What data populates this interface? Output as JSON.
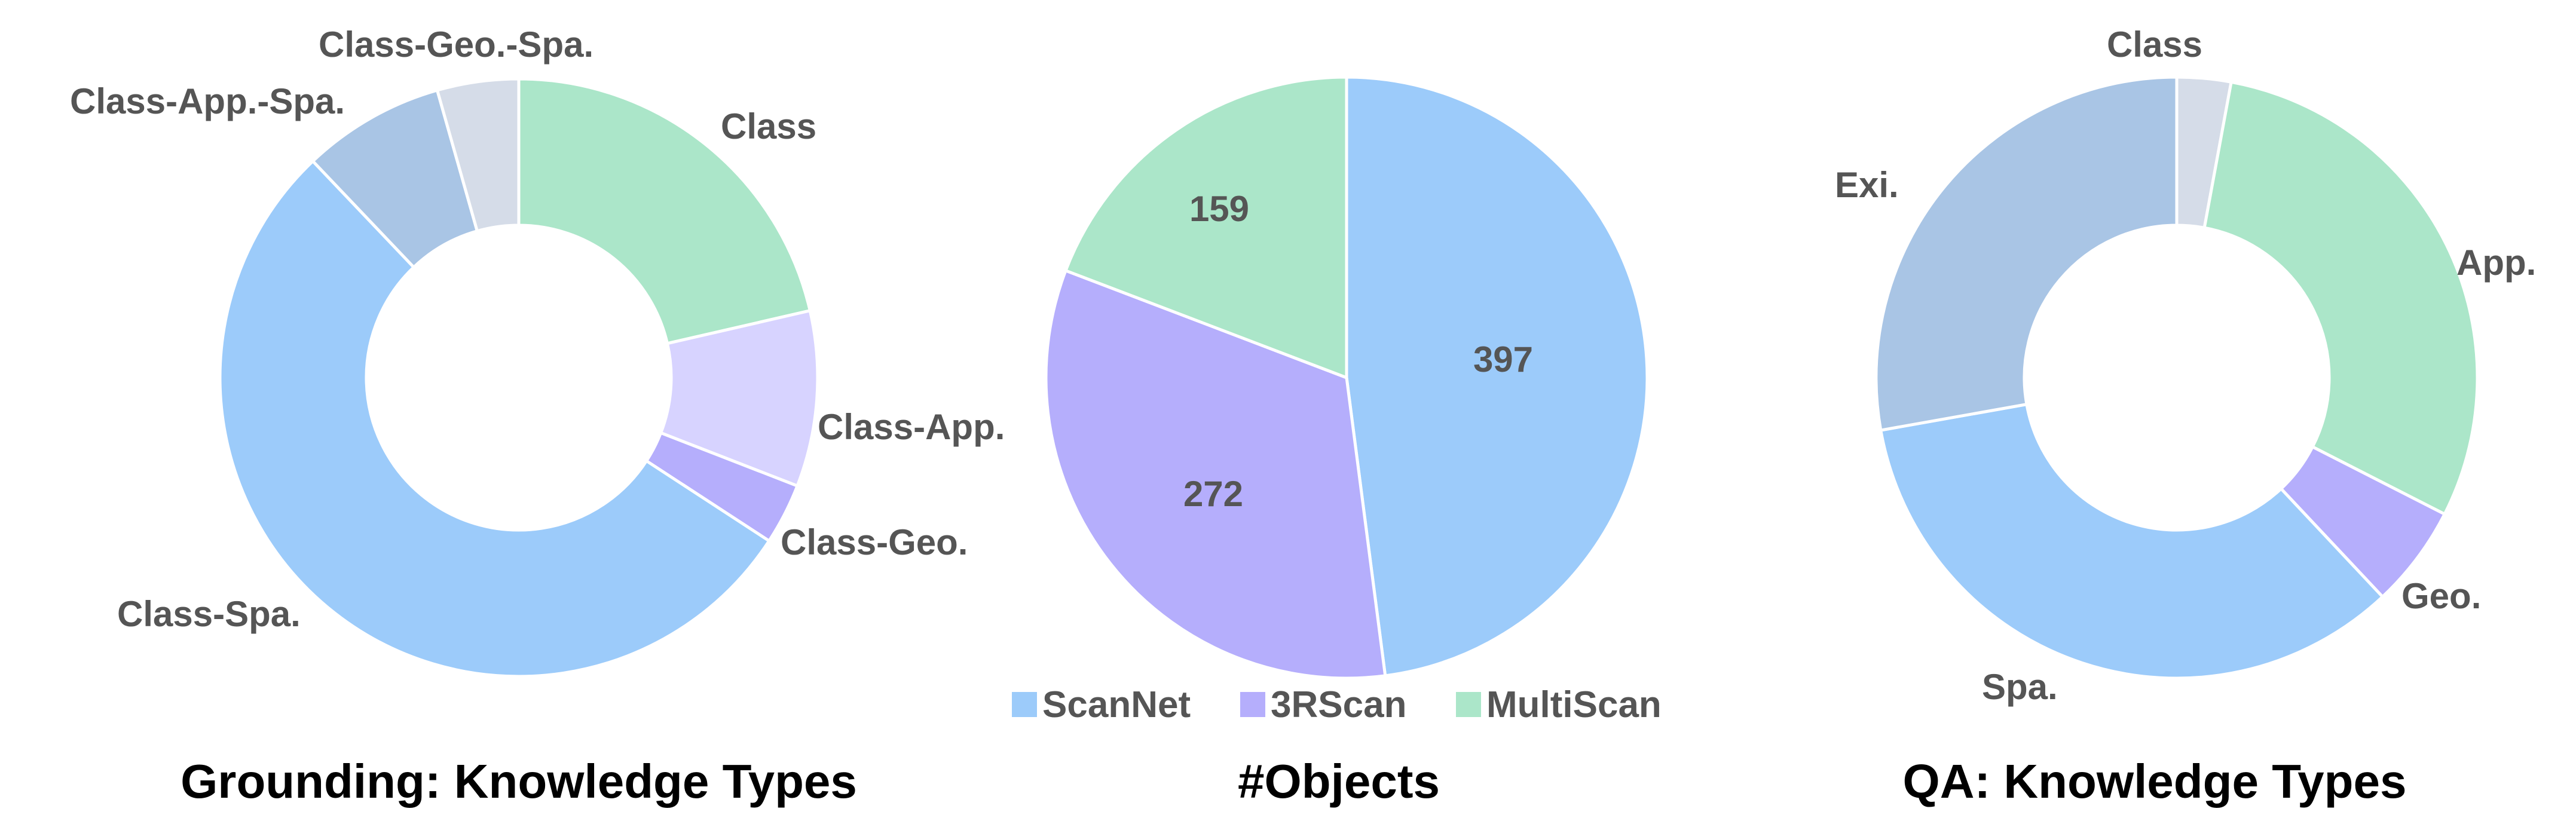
{
  "chart_data": [
    {
      "type": "pie",
      "variant": "donut",
      "title": "Grounding: Knowledge Types",
      "categories": [
        "Class",
        "Class-App.",
        "Class-Geo.",
        "Class-Spa.",
        "Class-App.-Spa.",
        "Class-Geo.-Spa."
      ],
      "values": [
        21.4,
        9.5,
        3.3,
        53.7,
        7.7,
        4.4
      ],
      "unit": "percent (estimated)",
      "colors": [
        "#abe6c9",
        "#d7d3ff",
        "#b5aefc",
        "#9ccbfa",
        "#a9c5e5",
        "#d5dce8"
      ],
      "start": "12 o'clock, clockwise"
    },
    {
      "type": "pie",
      "title": "#Objects",
      "categories": [
        "ScanNet",
        "3RScan",
        "MultiScan"
      ],
      "values": [
        397,
        272,
        159
      ],
      "data_labels": [
        "397",
        "272",
        "159"
      ],
      "colors": [
        "#9ccbfa",
        "#b5aefc",
        "#abe6c9"
      ],
      "start": "12 o'clock, clockwise",
      "legend": {
        "position": "bottom",
        "entries": [
          "ScanNet",
          "3RScan",
          "MultiScan"
        ]
      }
    },
    {
      "type": "pie",
      "variant": "donut",
      "title": "QA: Knowledge Types",
      "categories": [
        "Class",
        "App.",
        "Geo.",
        "Spa.",
        "Exi."
      ],
      "values": [
        2.9,
        29.6,
        5.5,
        34.2,
        27.8
      ],
      "unit": "percent (estimated)",
      "colors": [
        "#d5dce8",
        "#abe6c9",
        "#b5aefc",
        "#9ccbfa",
        "#a9c5e5"
      ],
      "start": "12 o'clock, clockwise"
    }
  ]
}
